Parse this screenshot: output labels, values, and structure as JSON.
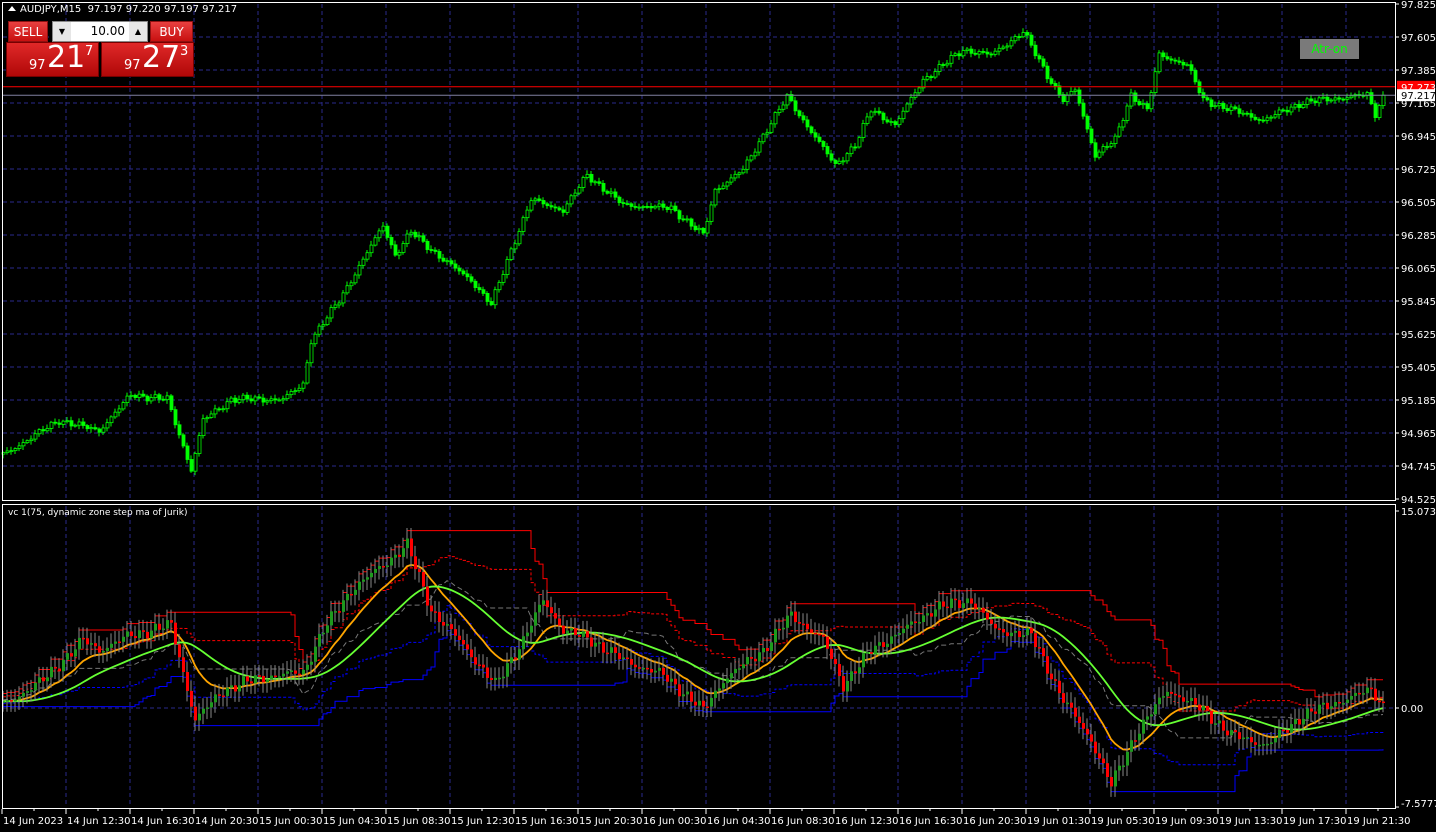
{
  "header": {
    "symbol": "AUDJPY,M15",
    "ohlc": "97.197 97.220 97.197 97.217"
  },
  "trade_panel": {
    "sell_label": "SELL",
    "buy_label": "BUY",
    "lot": "10.00",
    "sell_price": {
      "prefix": "97",
      "big": "21",
      "sup": "7"
    },
    "buy_price": {
      "prefix": "97",
      "big": "27",
      "sup": "3"
    }
  },
  "atr_button": "Atr-on",
  "indicator_title": "vc 1(75, dynamic zone step ma of Jurik)",
  "colors": {
    "background": "#000000",
    "candle": "#00ff00",
    "grid": "#2a2a8c",
    "ask_line": "#ff0000",
    "bid_line": "#8080a0",
    "upper": "#ff0000",
    "lower": "#0000ff",
    "jurik": "#ffa500",
    "step_ma": "#66ff33",
    "osc_up": "#1e9a1e",
    "osc_down": "#ff0000"
  },
  "chart_data": [
    {
      "type": "candlestick",
      "title": "AUDJPY,M15",
      "ylim": [
        94.525,
        97.825
      ],
      "y_ticks": [
        "97.825",
        "97.605",
        "97.385",
        "97.165",
        "96.945",
        "96.725",
        "96.505",
        "96.285",
        "96.065",
        "95.845",
        "95.625",
        "95.405",
        "95.185",
        "94.965",
        "94.745",
        "94.525"
      ],
      "grid": true,
      "bid": "97.217",
      "ask": "97.273",
      "approx_close_path": [
        [
          "2023-06-14 08:30",
          94.82
        ],
        [
          "2023-06-14 12:00",
          95.05
        ],
        [
          "2023-06-14 14:30",
          94.98
        ],
        [
          "2023-06-14 16:30",
          95.22
        ],
        [
          "2023-06-14 18:45",
          95.19
        ],
        [
          "2023-06-14 20:15",
          94.72
        ],
        [
          "2023-06-14 21:00",
          95.05
        ],
        [
          "2023-06-14 22:45",
          95.19
        ],
        [
          "2023-06-15 02:00",
          95.19
        ],
        [
          "2023-06-15 03:15",
          95.29
        ],
        [
          "2023-06-15 03:45",
          95.585
        ],
        [
          "2023-06-15 05:30",
          95.85
        ],
        [
          "2023-06-15 07:00",
          96.12
        ],
        [
          "2023-06-15 08:15",
          96.35
        ],
        [
          "2023-06-15 09:00",
          96.15
        ],
        [
          "2023-06-15 10:00",
          96.305
        ],
        [
          "2023-06-15 12:00",
          96.12
        ],
        [
          "2023-06-15 13:45",
          95.985
        ],
        [
          "2023-06-15 15:00",
          95.82
        ],
        [
          "2023-06-15 16:15",
          96.185
        ],
        [
          "2023-06-15 17:30",
          96.52
        ],
        [
          "2023-06-15 19:30",
          96.45
        ],
        [
          "2023-06-15 21:00",
          96.685
        ],
        [
          "2023-06-15 23:15",
          96.485
        ],
        [
          "2023-06-16 02:15",
          96.465
        ],
        [
          "2023-06-16 04:15",
          96.285
        ],
        [
          "2023-06-16 05:00",
          96.585
        ],
        [
          "2023-06-16 06:45",
          96.72
        ],
        [
          "2023-06-16 08:00",
          96.95
        ],
        [
          "2023-06-16 09:30",
          97.205
        ],
        [
          "2023-06-16 10:30",
          97.05
        ],
        [
          "2023-06-16 12:30",
          96.75
        ],
        [
          "2023-06-16 13:45",
          96.885
        ],
        [
          "2023-06-16 14:45",
          97.12
        ],
        [
          "2023-06-16 16:15",
          97.02
        ],
        [
          "2023-06-16 18:00",
          97.32
        ],
        [
          "2023-06-16 20:30",
          97.52
        ],
        [
          "2023-06-16 22:15",
          97.485
        ],
        [
          "2023-06-19 01:15",
          97.64
        ],
        [
          "2023-06-19 02:45",
          97.35
        ],
        [
          "2023-06-19 03:45",
          97.185
        ],
        [
          "2023-06-19 04:30",
          97.25
        ],
        [
          "2023-06-19 05:45",
          96.82
        ],
        [
          "2023-06-19 07:00",
          96.92
        ],
        [
          "2023-06-19 08:00",
          97.22
        ],
        [
          "2023-06-19 09:00",
          97.12
        ],
        [
          "2023-06-19 09:45",
          97.485
        ],
        [
          "2023-06-19 11:30",
          97.42
        ],
        [
          "2023-06-19 12:30",
          97.185
        ],
        [
          "2023-06-19 14:15",
          97.12
        ],
        [
          "2023-06-19 16:15",
          97.05
        ],
        [
          "2023-06-19 18:45",
          97.17
        ],
        [
          "2023-06-19 22:45",
          97.22
        ],
        [
          "2023-06-19 23:15",
          97.09
        ],
        [
          "2023-06-19 23:45",
          97.217
        ]
      ],
      "x_ticks": [
        "14 Jun 2023",
        "14 Jun 12:30",
        "14 Jun 16:30",
        "14 Jun 20:30",
        "15 Jun 00:30",
        "15 Jun 04:30",
        "15 Jun 08:30",
        "15 Jun 12:30",
        "15 Jun 16:30",
        "15 Jun 20:30",
        "16 Jun 00:30",
        "16 Jun 04:30",
        "16 Jun 08:30",
        "16 Jun 12:30",
        "16 Jun 16:30",
        "16 Jun 20:30",
        "19 Jun 01:30",
        "19 Jun 05:30",
        "19 Jun 09:30",
        "19 Jun 13:30",
        "19 Jun 17:30",
        "19 Jun 21:30"
      ]
    },
    {
      "type": "line",
      "title": "vc 1(75, dynamic zone step ma of Jurik)",
      "ylim": [
        -7.5777,
        15.0738
      ],
      "y_ticks": [
        "15.0738",
        "0.00",
        "-7.5777"
      ],
      "approx_oscillator_path": [
        [
          "2023-06-14 08:30",
          0.23
        ],
        [
          "2023-06-14 11:00",
          2.14
        ],
        [
          "2023-06-14 13:30",
          5.2
        ],
        [
          "2023-06-14 14:30",
          4.44
        ],
        [
          "2023-06-14 16:30",
          5.58
        ],
        [
          "2023-06-14 19:00",
          6.35
        ],
        [
          "2023-06-14 20:30",
          -0.92
        ],
        [
          "2023-06-14 22:15",
          1.38
        ],
        [
          "2023-06-15 00:30",
          2.3
        ],
        [
          "2023-06-15 03:15",
          2.75
        ],
        [
          "2023-06-15 04:30",
          5.97
        ],
        [
          "2023-06-15 06:15",
          9.03
        ],
        [
          "2023-06-15 08:15",
          10.94
        ],
        [
          "2023-06-15 09:45",
          12.47
        ],
        [
          "2023-06-15 11:15",
          7.5
        ],
        [
          "2023-06-15 13:15",
          4.82
        ],
        [
          "2023-06-15 15:15",
          1.76
        ],
        [
          "2023-06-15 17:00",
          5.2
        ],
        [
          "2023-06-15 18:15",
          8.26
        ],
        [
          "2023-06-15 19:30",
          5.97
        ],
        [
          "2023-06-15 21:15",
          5.2
        ],
        [
          "2023-06-15 23:15",
          3.67
        ],
        [
          "2023-06-16 01:45",
          2.52
        ],
        [
          "2023-06-16 04:15",
          -0.15
        ],
        [
          "2023-06-16 05:30",
          2.14
        ],
        [
          "2023-06-16 08:00",
          4.44
        ],
        [
          "2023-06-16 09:45",
          7.11
        ],
        [
          "2023-06-16 11:45",
          5.2
        ],
        [
          "2023-06-16 13:00",
          1.76
        ],
        [
          "2023-06-16 14:45",
          4.44
        ],
        [
          "2023-06-16 16:45",
          5.97
        ],
        [
          "2023-06-16 18:45",
          7.65
        ],
        [
          "2023-06-16 21:00",
          8.26
        ],
        [
          "2023-06-16 22:30",
          5.97
        ],
        [
          "2023-06-19 01:45",
          5.58
        ],
        [
          "2023-06-19 03:45",
          0.61
        ],
        [
          "2023-06-19 05:30",
          -2.45
        ],
        [
          "2023-06-19 06:45",
          -5.89
        ],
        [
          "2023-06-19 08:15",
          -2.07
        ],
        [
          "2023-06-19 10:15",
          1.38
        ],
        [
          "2023-06-19 12:30",
          -0.15
        ],
        [
          "2023-06-19 14:15",
          -2.07
        ],
        [
          "2023-06-19 16:30",
          -2.83
        ],
        [
          "2023-06-19 18:45",
          -0.54
        ],
        [
          "2023-06-19 21:15",
          0.61
        ],
        [
          "2023-06-19 23:00",
          1.38
        ],
        [
          "2023-06-19 23:45",
          0.23
        ]
      ]
    }
  ]
}
